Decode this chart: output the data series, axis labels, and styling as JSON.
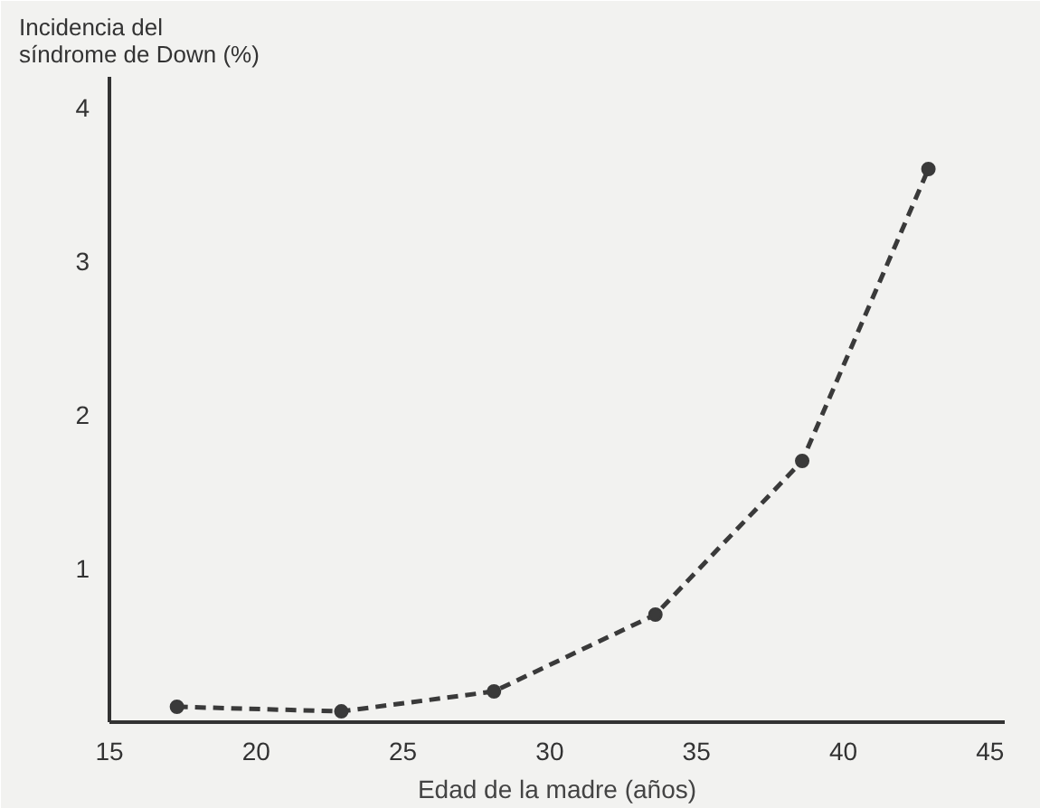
{
  "chart_data": {
    "type": "line",
    "xlabel": "Edad de la madre (años)",
    "ylabel": "Incidencia del\nsíndrome de Down (%)",
    "x": [
      17.3,
      22.9,
      28.1,
      33.6,
      38.6,
      42.9
    ],
    "values": [
      0.1,
      0.07,
      0.2,
      0.7,
      1.7,
      3.6
    ],
    "color": "#3a3a3a",
    "marker": "circle",
    "line_style": "dashed",
    "grid": false,
    "xlim": [
      15,
      45.5
    ],
    "ylim": [
      0,
      4.2
    ],
    "xticks": [
      15,
      20,
      25,
      30,
      35,
      40,
      45
    ],
    "yticks": [
      1,
      2,
      3,
      4
    ]
  }
}
